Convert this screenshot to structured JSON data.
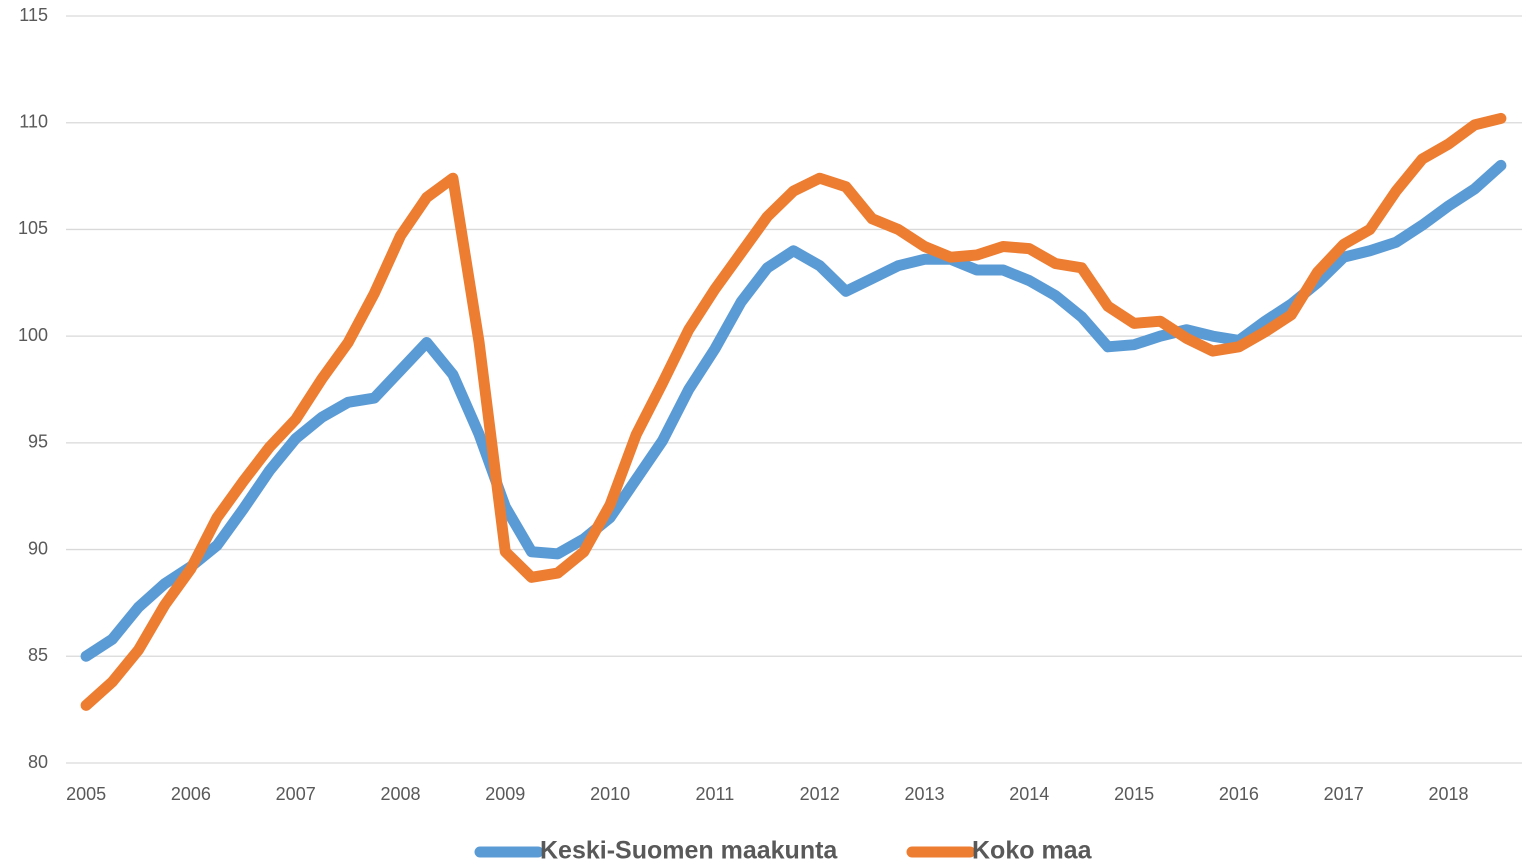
{
  "chart_data": {
    "type": "line",
    "categories": [
      "2005",
      null,
      null,
      null,
      "2006",
      null,
      null,
      null,
      "2007",
      null,
      null,
      null,
      "2008",
      null,
      null,
      null,
      "2009",
      null,
      null,
      null,
      "2010",
      null,
      null,
      null,
      "2011",
      null,
      null,
      null,
      "2012",
      null,
      null,
      null,
      "2013",
      null,
      null,
      null,
      "2014",
      null,
      null,
      null,
      "2015",
      null,
      null,
      null,
      "2016",
      null,
      null,
      null,
      "2017",
      null,
      null,
      null,
      "2018",
      null,
      null
    ],
    "series": [
      {
        "name": "Keski-Suomen maakunta",
        "color": "#5b9bd5",
        "values": [
          85.0,
          85.8,
          87.3,
          88.4,
          89.2,
          90.2,
          91.9,
          93.7,
          95.2,
          96.2,
          96.9,
          97.1,
          98.4,
          99.7,
          98.2,
          95.4,
          92.0,
          89.9,
          89.8,
          90.5,
          91.5,
          93.3,
          95.1,
          97.5,
          99.4,
          101.6,
          103.2,
          104.0,
          103.3,
          102.1,
          102.7,
          103.3,
          103.6,
          103.6,
          103.1,
          103.1,
          102.6,
          101.9,
          100.9,
          99.5,
          99.6,
          100.0,
          100.3,
          100.0,
          99.8,
          100.7,
          101.5,
          102.5,
          103.7,
          104.0,
          104.4,
          105.2,
          106.1,
          106.9,
          108.0
        ]
      },
      {
        "name": "Koko maa",
        "color": "#ed7d31",
        "values": [
          82.7,
          83.8,
          85.3,
          87.4,
          89.1,
          91.5,
          93.2,
          94.8,
          96.1,
          98.0,
          99.7,
          102.0,
          104.7,
          106.5,
          107.4,
          99.7,
          89.9,
          88.7,
          88.9,
          89.9,
          92.1,
          95.4,
          97.8,
          100.3,
          102.2,
          103.9,
          105.6,
          106.8,
          107.4,
          107.0,
          105.5,
          105.0,
          104.2,
          103.7,
          103.8,
          104.2,
          104.1,
          103.4,
          103.2,
          101.4,
          100.6,
          100.7,
          99.9,
          99.3,
          99.5,
          100.2,
          101.0,
          103.0,
          104.3,
          105.0,
          106.8,
          108.3,
          109.0,
          109.9,
          110.2
        ]
      }
    ],
    "ylim": [
      80,
      115
    ],
    "yticks": [
      80,
      85,
      90,
      95,
      100,
      105,
      110,
      115
    ],
    "grid": true,
    "legend": "bottom"
  }
}
